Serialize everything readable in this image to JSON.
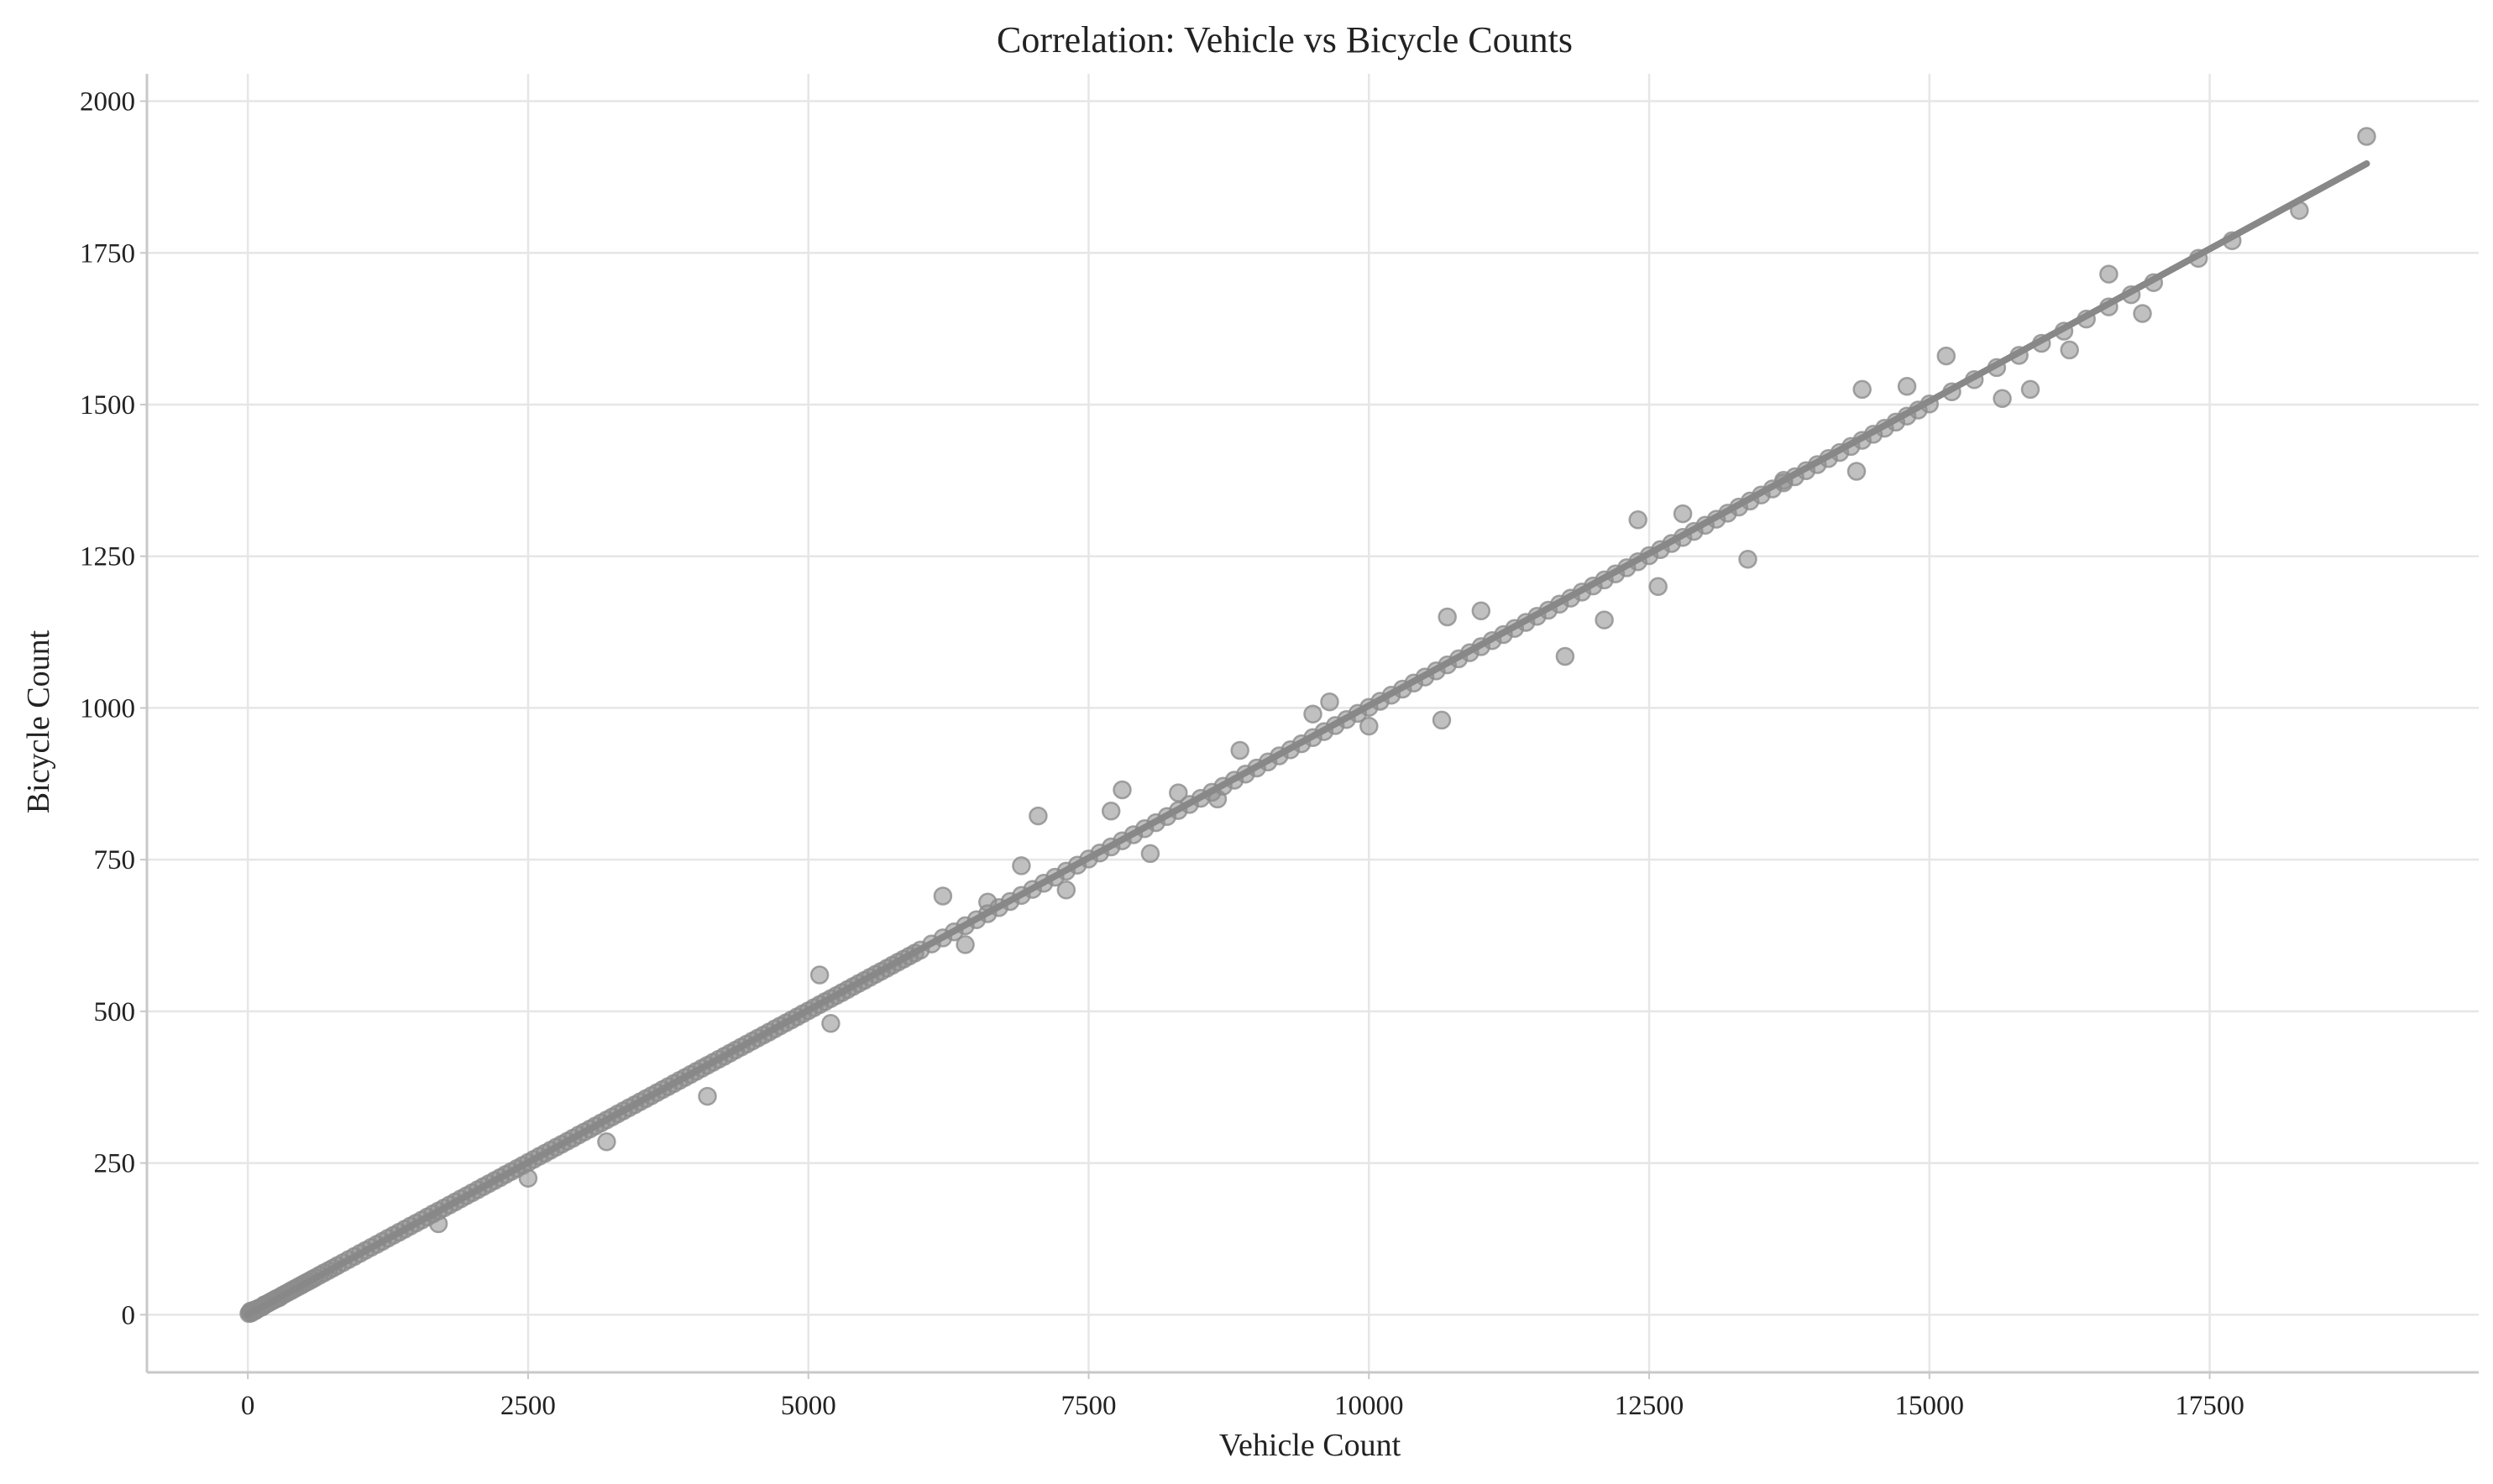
{
  "chart_data": {
    "type": "scatter",
    "title": "Correlation: Vehicle vs Bicycle Counts",
    "xlabel": "Vehicle Count",
    "ylabel": "Bicycle Count",
    "xlim": [
      -900,
      19900
    ],
    "ylim": [
      -95,
      2045
    ],
    "xticks": [
      0,
      2500,
      5000,
      7500,
      10000,
      12500,
      15000,
      17500
    ],
    "yticks": [
      0,
      250,
      500,
      750,
      1000,
      1250,
      1500,
      1750,
      2000
    ],
    "grid": true,
    "colors": {
      "points": "#8c8c8c",
      "trend": "#888888",
      "grid": "#e6e6e6",
      "axis": "#c8c8c8"
    },
    "trend_line": {
      "x": [
        0,
        18900
      ],
      "y": [
        0,
        1897
      ]
    },
    "points": [
      [
        10,
        2
      ],
      [
        18,
        4
      ],
      [
        25,
        6
      ],
      [
        32,
        3
      ],
      [
        40,
        5
      ],
      [
        48,
        7
      ],
      [
        55,
        6
      ],
      [
        63,
        8
      ],
      [
        70,
        7
      ],
      [
        80,
        9
      ],
      [
        90,
        10
      ],
      [
        100,
        11
      ],
      [
        115,
        12
      ],
      [
        130,
        13
      ],
      [
        145,
        16
      ],
      [
        160,
        17
      ],
      [
        180,
        19
      ],
      [
        200,
        21
      ],
      [
        220,
        23
      ],
      [
        240,
        25
      ],
      [
        260,
        27
      ],
      [
        280,
        28
      ],
      [
        300,
        31
      ],
      [
        330,
        34
      ],
      [
        360,
        37
      ],
      [
        390,
        40
      ],
      [
        420,
        43
      ],
      [
        450,
        46
      ],
      [
        480,
        49
      ],
      [
        510,
        52
      ],
      [
        540,
        55
      ],
      [
        570,
        58
      ],
      [
        600,
        61
      ],
      [
        640,
        65
      ],
      [
        680,
        69
      ],
      [
        720,
        73
      ],
      [
        760,
        77
      ],
      [
        800,
        81
      ],
      [
        850,
        86
      ],
      [
        900,
        91
      ],
      [
        950,
        96
      ],
      [
        1000,
        101
      ],
      [
        1050,
        106
      ],
      [
        1100,
        111
      ],
      [
        1150,
        116
      ],
      [
        1200,
        121
      ],
      [
        1250,
        126
      ],
      [
        1300,
        131
      ],
      [
        1350,
        136
      ],
      [
        1400,
        141
      ],
      [
        1450,
        146
      ],
      [
        1500,
        151
      ],
      [
        1550,
        156
      ],
      [
        1600,
        161
      ],
      [
        1650,
        166
      ],
      [
        1700,
        171
      ],
      [
        1750,
        176
      ],
      [
        1800,
        181
      ],
      [
        1850,
        186
      ],
      [
        1900,
        191
      ],
      [
        1950,
        196
      ],
      [
        2000,
        201
      ],
      [
        2050,
        206
      ],
      [
        2100,
        211
      ],
      [
        2150,
        216
      ],
      [
        2200,
        221
      ],
      [
        2250,
        226
      ],
      [
        2300,
        231
      ],
      [
        2350,
        236
      ],
      [
        2400,
        241
      ],
      [
        2450,
        246
      ],
      [
        2500,
        251
      ],
      [
        2550,
        256
      ],
      [
        2600,
        261
      ],
      [
        2650,
        266
      ],
      [
        2700,
        271
      ],
      [
        2750,
        276
      ],
      [
        2800,
        281
      ],
      [
        2850,
        286
      ],
      [
        2900,
        291
      ],
      [
        2950,
        296
      ],
      [
        3000,
        301
      ],
      [
        3050,
        306
      ],
      [
        3100,
        311
      ],
      [
        3150,
        316
      ],
      [
        3200,
        321
      ],
      [
        3250,
        326
      ],
      [
        3300,
        331
      ],
      [
        3350,
        336
      ],
      [
        3400,
        341
      ],
      [
        3450,
        346
      ],
      [
        3500,
        351
      ],
      [
        3550,
        356
      ],
      [
        3600,
        361
      ],
      [
        3650,
        366
      ],
      [
        3700,
        371
      ],
      [
        3750,
        376
      ],
      [
        3800,
        381
      ],
      [
        3850,
        386
      ],
      [
        3900,
        391
      ],
      [
        3950,
        396
      ],
      [
        4000,
        401
      ],
      [
        4050,
        406
      ],
      [
        4100,
        411
      ],
      [
        4150,
        416
      ],
      [
        4200,
        421
      ],
      [
        4250,
        426
      ],
      [
        4300,
        431
      ],
      [
        4350,
        436
      ],
      [
        4400,
        441
      ],
      [
        4450,
        446
      ],
      [
        4500,
        451
      ],
      [
        4550,
        456
      ],
      [
        4600,
        461
      ],
      [
        4650,
        466
      ],
      [
        4700,
        471
      ],
      [
        4750,
        476
      ],
      [
        4800,
        481
      ],
      [
        4850,
        486
      ],
      [
        4900,
        491
      ],
      [
        4950,
        496
      ],
      [
        5000,
        501
      ],
      [
        5050,
        506
      ],
      [
        5100,
        511
      ],
      [
        5150,
        516
      ],
      [
        5200,
        521
      ],
      [
        5250,
        526
      ],
      [
        5300,
        531
      ],
      [
        5350,
        536
      ],
      [
        5400,
        541
      ],
      [
        5450,
        546
      ],
      [
        5500,
        551
      ],
      [
        5550,
        556
      ],
      [
        5600,
        561
      ],
      [
        5650,
        566
      ],
      [
        5700,
        571
      ],
      [
        5750,
        576
      ],
      [
        5800,
        581
      ],
      [
        5850,
        586
      ],
      [
        5900,
        591
      ],
      [
        5950,
        596
      ],
      [
        6000,
        601
      ],
      [
        6100,
        611
      ],
      [
        6200,
        621
      ],
      [
        6300,
        631
      ],
      [
        6400,
        641
      ],
      [
        6500,
        651
      ],
      [
        6600,
        661
      ],
      [
        6700,
        671
      ],
      [
        6800,
        681
      ],
      [
        6900,
        691
      ],
      [
        7000,
        701
      ],
      [
        7100,
        711
      ],
      [
        7200,
        721
      ],
      [
        7300,
        731
      ],
      [
        7400,
        741
      ],
      [
        7500,
        751
      ],
      [
        7600,
        761
      ],
      [
        7700,
        771
      ],
      [
        7800,
        781
      ],
      [
        7900,
        791
      ],
      [
        8000,
        801
      ],
      [
        8100,
        811
      ],
      [
        8200,
        821
      ],
      [
        8300,
        831
      ],
      [
        8400,
        841
      ],
      [
        8500,
        851
      ],
      [
        8600,
        861
      ],
      [
        8700,
        871
      ],
      [
        8800,
        881
      ],
      [
        8900,
        891
      ],
      [
        9000,
        901
      ],
      [
        9100,
        911
      ],
      [
        9200,
        921
      ],
      [
        9300,
        931
      ],
      [
        9400,
        941
      ],
      [
        9500,
        951
      ],
      [
        9600,
        961
      ],
      [
        9700,
        971
      ],
      [
        9800,
        981
      ],
      [
        9900,
        991
      ],
      [
        10000,
        1001
      ],
      [
        10100,
        1011
      ],
      [
        10200,
        1021
      ],
      [
        10300,
        1031
      ],
      [
        10400,
        1041
      ],
      [
        10500,
        1051
      ],
      [
        10600,
        1061
      ],
      [
        10700,
        1071
      ],
      [
        10800,
        1081
      ],
      [
        10900,
        1091
      ],
      [
        11000,
        1101
      ],
      [
        11100,
        1111
      ],
      [
        11200,
        1121
      ],
      [
        11300,
        1131
      ],
      [
        11400,
        1141
      ],
      [
        11500,
        1151
      ],
      [
        11600,
        1161
      ],
      [
        11700,
        1171
      ],
      [
        11800,
        1181
      ],
      [
        11900,
        1191
      ],
      [
        12000,
        1201
      ],
      [
        12100,
        1211
      ],
      [
        12200,
        1221
      ],
      [
        12300,
        1231
      ],
      [
        12400,
        1241
      ],
      [
        12500,
        1251
      ],
      [
        12600,
        1261
      ],
      [
        12700,
        1271
      ],
      [
        12800,
        1281
      ],
      [
        12900,
        1291
      ],
      [
        13000,
        1301
      ],
      [
        13100,
        1311
      ],
      [
        13200,
        1321
      ],
      [
        13300,
        1331
      ],
      [
        13400,
        1341
      ],
      [
        13500,
        1351
      ],
      [
        13600,
        1361
      ],
      [
        13700,
        1371
      ],
      [
        13800,
        1381
      ],
      [
        13900,
        1391
      ],
      [
        14000,
        1401
      ],
      [
        14100,
        1411
      ],
      [
        14200,
        1421
      ],
      [
        14300,
        1431
      ],
      [
        14400,
        1441
      ],
      [
        14500,
        1451
      ],
      [
        14600,
        1461
      ],
      [
        14700,
        1471
      ],
      [
        14800,
        1481
      ],
      [
        14900,
        1491
      ],
      [
        15000,
        1501
      ],
      [
        15200,
        1521
      ],
      [
        15400,
        1541
      ],
      [
        15600,
        1561
      ],
      [
        15800,
        1581
      ],
      [
        16000,
        1601
      ],
      [
        16200,
        1621
      ],
      [
        16400,
        1641
      ],
      [
        16600,
        1661
      ],
      [
        16800,
        1681
      ],
      [
        17000,
        1701
      ],
      [
        17400,
        1741
      ],
      [
        17700,
        1770
      ],
      [
        18300,
        1820
      ],
      [
        18900,
        1942
      ],
      [
        7050,
        822
      ],
      [
        10650,
        980
      ],
      [
        11750,
        1085
      ],
      [
        13380,
        1245
      ],
      [
        12100,
        1145
      ],
      [
        12580,
        1200
      ],
      [
        9500,
        990
      ],
      [
        8850,
        930
      ],
      [
        7800,
        865
      ],
      [
        8050,
        760
      ],
      [
        5200,
        480
      ],
      [
        5100,
        560
      ],
      [
        6200,
        690
      ],
      [
        6400,
        610
      ],
      [
        7300,
        700
      ],
      [
        6900,
        740
      ],
      [
        4100,
        360
      ],
      [
        3200,
        285
      ],
      [
        2500,
        225
      ],
      [
        1700,
        150
      ],
      [
        14400,
        1525
      ],
      [
        14800,
        1530
      ],
      [
        15150,
        1580
      ],
      [
        16250,
        1590
      ],
      [
        16600,
        1715
      ],
      [
        16900,
        1650
      ],
      [
        15650,
        1510
      ],
      [
        15900,
        1525
      ],
      [
        13700,
        1375
      ],
      [
        14350,
        1390
      ],
      [
        12800,
        1320
      ],
      [
        12400,
        1310
      ],
      [
        11000,
        1160
      ],
      [
        10700,
        1150
      ],
      [
        10000,
        970
      ],
      [
        9650,
        1010
      ],
      [
        8650,
        850
      ],
      [
        8300,
        860
      ],
      [
        7700,
        830
      ],
      [
        6600,
        680
      ]
    ]
  }
}
